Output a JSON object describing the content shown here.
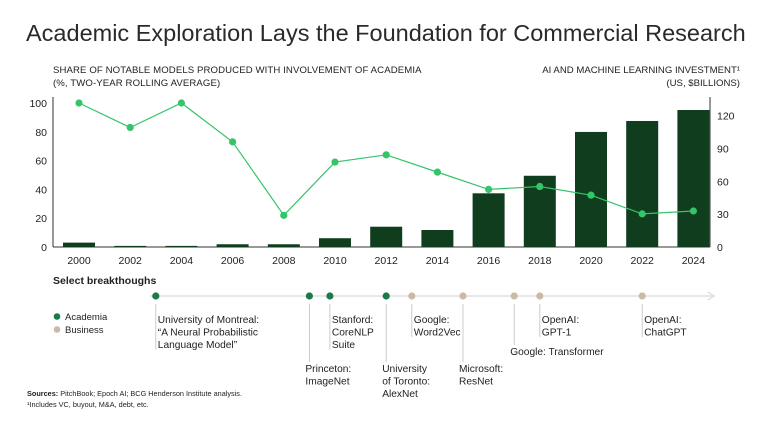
{
  "title": "Academic Exploration Lays the Foundation for Commercial Research",
  "subtitle_left": [
    "SHARE OF NOTABLE MODELS PRODUCED WITH INVOLVEMENT OF ACADEMIA",
    "(%, TWO-YEAR ROLLING AVERAGE)"
  ],
  "subtitle_right": [
    "AI AND MACHINE LEARNING INVESTMENT¹",
    "(US, $BILLIONS)"
  ],
  "colors": {
    "bar": "#0f3d1e",
    "line": "#34c46a",
    "academia": "#1c7a4a",
    "business": "#cdb9a8",
    "axis": "#333333",
    "timeline": "#d9d9d9"
  },
  "chart_data": {
    "type": "bar+line",
    "x": [
      "2000",
      "2002",
      "2004",
      "2006",
      "2008",
      "2010",
      "2012",
      "2014",
      "2016",
      "2018",
      "2020",
      "2022",
      "2024"
    ],
    "series": [
      {
        "name": "AI and machine learning investment (US, $billions)",
        "type": "bar",
        "axis": "right",
        "values": [
          4,
          1,
          1,
          2.5,
          2.5,
          8,
          18.5,
          15.5,
          49,
          65,
          105,
          115,
          125
        ]
      },
      {
        "name": "Share of notable models with academia (%)",
        "type": "line",
        "axis": "left",
        "values": [
          100,
          83,
          100,
          73,
          22,
          59,
          64,
          52,
          40,
          42,
          36,
          23,
          25
        ]
      }
    ],
    "left_axis": {
      "ylim": [
        0,
        100
      ],
      "ticks": [
        "0",
        "20",
        "40",
        "60",
        "80",
        "100"
      ]
    },
    "right_axis": {
      "ylim": [
        0,
        130
      ],
      "ticks": [
        "0",
        "30",
        "60",
        "90",
        "120"
      ]
    }
  },
  "breakthroughs": {
    "heading": "Select breakthoughs",
    "legend": [
      {
        "label": "Academia",
        "type": "academia"
      },
      {
        "label": "Business",
        "type": "business"
      }
    ],
    "events": [
      {
        "year": 2003,
        "type": "academia",
        "lines": [
          "University of Montreal:",
          "“A Neural Probabilistic",
          "Language Model”"
        ],
        "pos": "above"
      },
      {
        "year": 2009,
        "type": "academia",
        "lines": [
          "Princeton:",
          "ImageNet"
        ],
        "pos": "below"
      },
      {
        "year": 2009.8,
        "type": "academia",
        "lines": [
          "Stanford:",
          "CoreNLP",
          "Suite"
        ],
        "pos": "above"
      },
      {
        "year": 2012,
        "type": "academia",
        "lines": [
          "University",
          "of Toronto:",
          "AlexNet"
        ],
        "pos": "below"
      },
      {
        "year": 2013,
        "type": "business",
        "lines": [
          "Google:",
          "Word2Vec"
        ],
        "pos": "above"
      },
      {
        "year": 2015,
        "type": "business",
        "lines": [
          "Microsoft:",
          "ResNet"
        ],
        "pos": "below"
      },
      {
        "year": 2017,
        "type": "business",
        "lines": [
          "Google: Transformer"
        ],
        "pos": "below"
      },
      {
        "year": 2018,
        "type": "business",
        "lines": [
          "OpenAI:",
          "GPT-1"
        ],
        "pos": "above"
      },
      {
        "year": 2022,
        "type": "business",
        "lines": [
          "OpenAI:",
          "ChatGPT"
        ],
        "pos": "above"
      }
    ]
  },
  "sources": {
    "label": "Sources:",
    "text": " PitchBook; Epoch AI; BCG Henderson Institute analysis.",
    "footnote": "¹Includes VC, buyout, M&A, debt, etc."
  }
}
